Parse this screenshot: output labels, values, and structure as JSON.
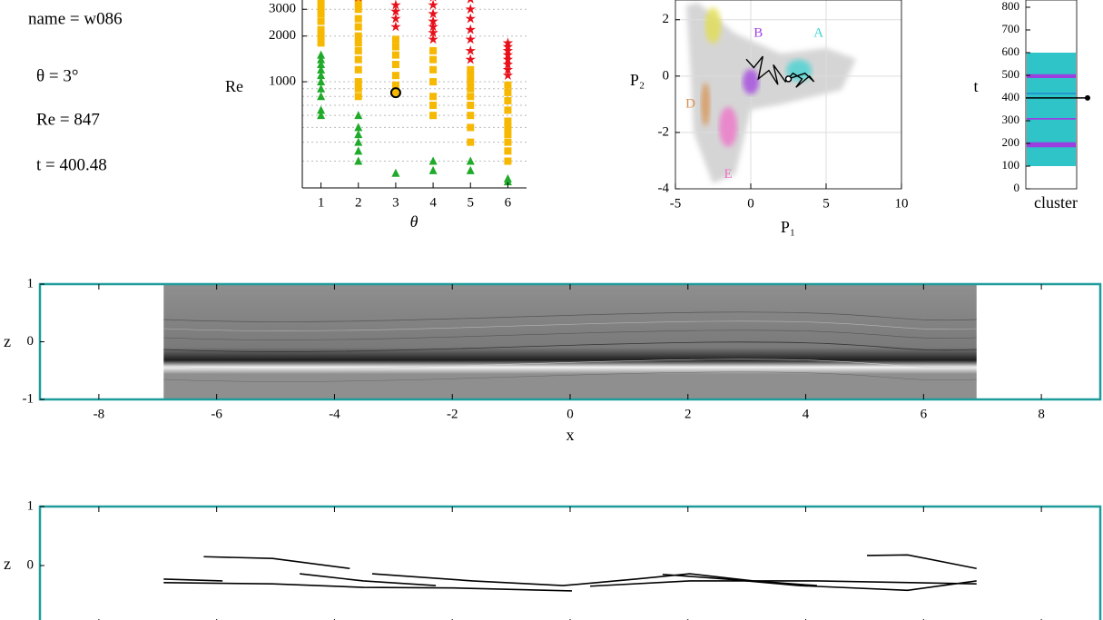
{
  "info": {
    "name": "name = w086",
    "theta": "θ = 3°",
    "re": "Re = 847",
    "t": "t = 400.48"
  },
  "chart_data": [
    {
      "type": "scatter",
      "xlabel": "θ",
      "ylabel": "Re",
      "log_y": true,
      "xlim": [
        0.5,
        6.5
      ],
      "ylim": [
        200,
        3700
      ],
      "xticks": [
        1,
        2,
        3,
        4,
        5,
        6
      ],
      "yticks": [
        1000,
        2000,
        3000
      ],
      "yminor": [
        300,
        400,
        500,
        600,
        700,
        800,
        900
      ],
      "grid": "dotted",
      "series": [
        {
          "color": "#1faa2a",
          "marker": "triangle",
          "x": [
            1,
            1,
            1,
            1,
            1,
            1,
            1,
            1,
            1,
            1,
            2,
            2,
            2,
            2,
            2,
            2,
            3,
            4,
            4,
            5,
            5,
            6,
            6
          ],
          "y": [
            1500,
            1400,
            1300,
            1200,
            1100,
            1000,
            900,
            800,
            650,
            600,
            300,
            350,
            400,
            450,
            500,
            600,
            250,
            260,
            300,
            260,
            300,
            220,
            230
          ]
        },
        {
          "color": "#f6b800",
          "marker": "square",
          "x": [
            1,
            1,
            1,
            1,
            1,
            1,
            1,
            2,
            2,
            2,
            2,
            2,
            2,
            2,
            2,
            2,
            2,
            2,
            2,
            3,
            3,
            3,
            3,
            3,
            3,
            3,
            4,
            4,
            4,
            4,
            4,
            4,
            4,
            5,
            5,
            5,
            5,
            5,
            5,
            5,
            5,
            5,
            6,
            6,
            6,
            6,
            6,
            6,
            6,
            6,
            6,
            6
          ],
          "y": [
            1800,
            2000,
            2200,
            2500,
            2800,
            3100,
            3400,
            800,
            900,
            1000,
            1200,
            1400,
            1600,
            1800,
            2000,
            2300,
            2600,
            3000,
            3300,
            850,
            950,
            1100,
            1300,
            1500,
            1700,
            1900,
            600,
            700,
            800,
            1000,
            1200,
            1400,
            1600,
            400,
            500,
            600,
            700,
            800,
            900,
            1000,
            1100,
            1200,
            300,
            350,
            400,
            450,
            500,
            550,
            650,
            750,
            850,
            950
          ]
        },
        {
          "color": "#e8101a",
          "marker": "star",
          "x": [
            2,
            3,
            3,
            3,
            3,
            4,
            4,
            4,
            4,
            4,
            4,
            4,
            5,
            5,
            5,
            5,
            5,
            5,
            5,
            6,
            6,
            6,
            6,
            6,
            6,
            6,
            6
          ],
          "y": [
            3600,
            2300,
            2600,
            2900,
            3200,
            1900,
            2100,
            2300,
            2500,
            2800,
            3200,
            3600,
            1400,
            1600,
            1900,
            2200,
            2600,
            3000,
            3500,
            1100,
            1200,
            1300,
            1400,
            1500,
            1600,
            1700,
            1800
          ]
        },
        {
          "color": "#000000",
          "marker": "circle",
          "x": [
            3
          ],
          "y": [
            847
          ]
        }
      ]
    },
    {
      "type": "scatter",
      "xlabel": "P₁",
      "ylabel": "P₂",
      "xlim": [
        -5,
        10
      ],
      "ylim": [
        -4,
        2.7
      ],
      "xticks": [
        -5,
        0,
        5,
        10
      ],
      "yticks": [
        -4,
        -2,
        0,
        2
      ],
      "grid": "solid",
      "clusters": [
        {
          "name": null,
          "color": "#e3df4a",
          "x": -2.5,
          "y": 1.8
        },
        {
          "name": "B",
          "color": "#a040e0",
          "x": 0,
          "y": -0.2,
          "label_x": 0.5,
          "label_y": 1.5
        },
        {
          "name": "A",
          "color": "#3fd3d3",
          "x": 3.2,
          "y": 0.2,
          "label_x": 4.5,
          "label_y": 1.5
        },
        {
          "name": "D",
          "color": "#d8904e",
          "x": -3,
          "y": -1,
          "label_x": -4,
          "label_y": -1
        },
        {
          "name": "E",
          "color": "#f070c8",
          "x": -1.5,
          "y": -1.8,
          "label_x": -1.5,
          "label_y": -3.5
        }
      ],
      "series": [
        {
          "color": "#000000",
          "marker": "line",
          "x": [
            -0.3,
            0.2,
            0.8,
            0.5,
            1.2,
            1.8,
            1.5,
            2.3,
            2.8,
            3.4,
            3.0,
            3.9,
            4.2,
            3.6,
            2.5
          ],
          "y": [
            0.6,
            0.3,
            0.7,
            -0.1,
            0.2,
            -0.3,
            0.4,
            -0.2,
            0.1,
            -0.1,
            -0.4,
            0.0,
            -0.2,
            0.1,
            -0.1
          ]
        }
      ],
      "highlight_last": true
    },
    {
      "type": "strip",
      "xlabel": "cluster",
      "ylabel": "t",
      "ylim": [
        0,
        832
      ],
      "yticks": [
        0,
        100,
        200,
        300,
        400,
        500,
        600,
        700,
        800
      ],
      "current_t": 400.48,
      "segments": [
        {
          "color": "#2ec4c8",
          "start": 100,
          "end": 600
        },
        {
          "color": "#9b3fe0",
          "start": 488,
          "end": 505
        },
        {
          "color": "#1f8ad0",
          "start": 420,
          "end": 423
        },
        {
          "color": "#9b3fe0",
          "start": 305,
          "end": 312
        },
        {
          "color": "#9b3fe0",
          "start": 183,
          "end": 205
        }
      ]
    },
    {
      "type": "image",
      "xlabel": "x",
      "ylabel": "z",
      "xlim": [
        -9,
        9
      ],
      "ylim": [
        -1,
        1
      ],
      "xticks": [
        -8,
        -6,
        -4,
        -2,
        0,
        2,
        4,
        6,
        8
      ],
      "yticks": [
        -1,
        0,
        1
      ],
      "image_extent": [
        -6.9,
        6.9
      ],
      "frame_color": "#1e9c9c"
    },
    {
      "type": "line",
      "ylabel": "z",
      "xlim": [
        -9,
        9
      ],
      "ylim": [
        -1,
        1
      ],
      "xtick_labels": false,
      "xticks": [
        -8,
        -6,
        -4,
        -2,
        0,
        2,
        4,
        6,
        8
      ],
      "yticks": [
        0,
        1
      ],
      "frame_color": "#1e9c9c",
      "series": [
        {
          "color": "#000000",
          "x": [
            -6.22,
            -5.05,
            -3.74
          ],
          "y": [
            0.15,
            0.12,
            -0.05
          ]
        },
        {
          "color": "#000000",
          "x": [
            -6.9,
            -5.9
          ],
          "y": [
            -0.23,
            -0.26
          ]
        },
        {
          "color": "#000000",
          "x": [
            -6.9,
            -5.05,
            -3.51,
            -1.97,
            0.03
          ],
          "y": [
            -0.29,
            -0.31,
            -0.37,
            -0.38,
            -0.43
          ]
        },
        {
          "color": "#000000",
          "x": [
            -4.59,
            -3.51,
            -2.28
          ],
          "y": [
            -0.14,
            -0.26,
            -0.34
          ]
        },
        {
          "color": "#000000",
          "x": [
            -3.36,
            -1.66,
            -0.12,
            1.11,
            2.03,
            3.11,
            4.19
          ],
          "y": [
            -0.14,
            -0.26,
            -0.34,
            -0.23,
            -0.14,
            -0.26,
            -0.34
          ]
        },
        {
          "color": "#000000",
          "x": [
            1.57,
            2.65,
            3.88,
            5.73,
            6.9
          ],
          "y": [
            -0.15,
            -0.23,
            -0.34,
            -0.42,
            -0.26
          ]
        },
        {
          "color": "#000000",
          "x": [
            5.04,
            5.73,
            6.9
          ],
          "y": [
            0.17,
            0.18,
            -0.05
          ]
        },
        {
          "color": "#000000",
          "x": [
            0.34,
            2.03,
            4.19,
            6.9
          ],
          "y": [
            -0.35,
            -0.26,
            -0.26,
            -0.31
          ]
        }
      ]
    }
  ]
}
